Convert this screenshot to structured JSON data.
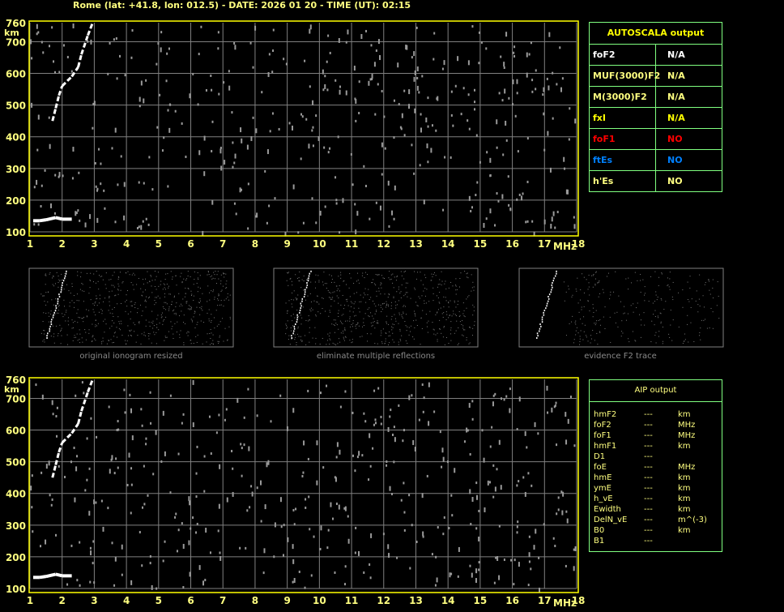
{
  "header": {
    "title": "Rome (lat: +41.8, lon: 012.5) - DATE: 2026 01 20 - TIME (UT): 02:15"
  },
  "colors": {
    "axis": "#ffff00",
    "grid": "#808080",
    "table_border": "#80ff80",
    "red": "#ff0000",
    "blue": "#0080ff",
    "white": "#ffffff",
    "yellow": "#ffff00"
  },
  "chart_data": [
    {
      "type": "scatter",
      "name_plot": "top-ionogram",
      "xlabel": "MHz",
      "ylabel": "km",
      "xlim": [
        1,
        18
      ],
      "ylim": [
        100,
        760
      ],
      "xticks": [
        "1",
        "2",
        "3",
        "4",
        "5",
        "6",
        "7",
        "8",
        "9",
        "10",
        "11",
        "12",
        "13",
        "14",
        "15",
        "16",
        "17",
        "18"
      ],
      "yticks": [
        "100",
        "200",
        "300",
        "400",
        "500",
        "600",
        "700",
        "760"
      ],
      "grid": true,
      "traces": {
        "F2": [
          [
            1.7,
            450
          ],
          [
            1.8,
            490
          ],
          [
            1.9,
            530
          ],
          [
            2.0,
            560
          ],
          [
            2.3,
            590
          ],
          [
            2.5,
            620
          ],
          [
            2.6,
            660
          ],
          [
            2.8,
            720
          ],
          [
            2.95,
            760
          ]
        ],
        "E": [
          [
            1.1,
            135
          ],
          [
            1.3,
            135
          ],
          [
            1.5,
            138
          ],
          [
            1.8,
            145
          ],
          [
            2.0,
            140
          ],
          [
            2.3,
            140
          ]
        ]
      }
    },
    {
      "type": "scatter",
      "name_plot": "bottom-ionogram",
      "xlabel": "MHz",
      "ylabel": "km",
      "xlim": [
        1,
        18
      ],
      "ylim": [
        100,
        760
      ],
      "xticks": [
        "1",
        "2",
        "3",
        "4",
        "5",
        "6",
        "7",
        "8",
        "9",
        "10",
        "11",
        "12",
        "13",
        "14",
        "15",
        "16",
        "17",
        "18"
      ],
      "yticks": [
        "100",
        "200",
        "300",
        "400",
        "500",
        "600",
        "700",
        "760"
      ],
      "grid": true
    }
  ],
  "thumbnails": [
    {
      "caption": "original ionogram resized"
    },
    {
      "caption": "eliminate multiple reflections"
    },
    {
      "caption": "evidence F2 trace"
    }
  ],
  "autoscala": {
    "title": "AUTOSCALA output",
    "rows": [
      {
        "label": "foF2",
        "value": "N/A",
        "lc": "#ffffff",
        "vc": "#ffffff"
      },
      {
        "label": "MUF(3000)F2",
        "value": "N/A",
        "lc": "#ffff80",
        "vc": "#ffff80"
      },
      {
        "label": "M(3000)F2",
        "value": "N/A",
        "lc": "#ffff80",
        "vc": "#ffff80"
      },
      {
        "label": "fxI",
        "value": "N/A",
        "lc": "#ffff00",
        "vc": "#ffff00"
      },
      {
        "label": "foF1",
        "value": "NO",
        "lc": "#ff0000",
        "vc": "#ff0000"
      },
      {
        "label": "ftEs",
        "value": "NO",
        "lc": "#0080ff",
        "vc": "#0080ff"
      },
      {
        "label": "h'Es",
        "value": "NO",
        "lc": "#ffff80",
        "vc": "#ffff80"
      }
    ]
  },
  "aip": {
    "title": "AIP output",
    "rows": [
      {
        "p": "hmF2",
        "v": "---",
        "u": "km"
      },
      {
        "p": "foF2",
        "v": "---",
        "u": "MHz"
      },
      {
        "p": "foF1",
        "v": "---",
        "u": "MHz"
      },
      {
        "p": "hmF1",
        "v": "---",
        "u": "km"
      },
      {
        "p": "D1",
        "v": "---",
        "u": ""
      },
      {
        "p": "foE",
        "v": "---",
        "u": "MHz"
      },
      {
        "p": "hmE",
        "v": "---",
        "u": "km"
      },
      {
        "p": "ymE",
        "v": "---",
        "u": "km"
      },
      {
        "p": "h_vE",
        "v": "---",
        "u": "km"
      },
      {
        "p": "Ewidth",
        "v": "---",
        "u": "km"
      },
      {
        "p": "DelN_vE",
        "v": "---",
        "u": "m^(-3)"
      },
      {
        "p": "B0",
        "v": "---",
        "u": "km"
      },
      {
        "p": "B1",
        "v": "---",
        "u": ""
      }
    ]
  }
}
